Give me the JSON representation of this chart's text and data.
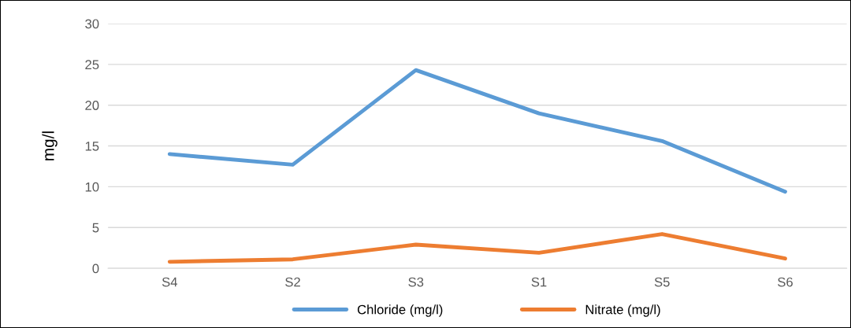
{
  "chart_data": {
    "type": "line",
    "ylabel": "mg/l",
    "categories": [
      "S4",
      "S2",
      "S3",
      "S1",
      "S5",
      "S6"
    ],
    "series": [
      {
        "name": "Chloride (mg/l)",
        "color": "#5b9bd5",
        "values": [
          14.0,
          12.7,
          24.3,
          19.0,
          15.6,
          9.4
        ]
      },
      {
        "name": "Nitrate (mg/l)",
        "color": "#ed7d31",
        "values": [
          0.8,
          1.1,
          2.9,
          1.9,
          4.2,
          1.2
        ]
      }
    ],
    "ylim": [
      0,
      30
    ],
    "yticks": [
      0,
      5,
      10,
      15,
      20,
      25,
      30
    ],
    "grid": "y",
    "legend": "bottom",
    "marker": "none",
    "line_style": "solid"
  }
}
